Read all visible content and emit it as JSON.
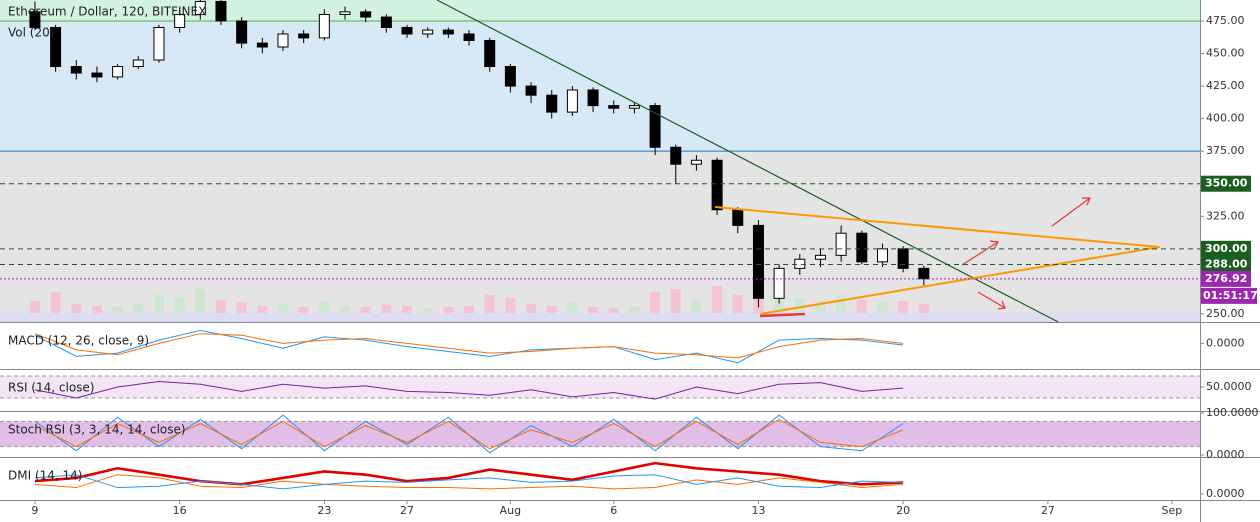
{
  "chart_data": [
    {
      "type": "candlestick",
      "title": "Ethereum / Dollar, 120, BITFINEX",
      "volume_title": "Vol (20)",
      "xlim": [
        -1.69,
        56.36
      ],
      "ylim": [
        243.8,
        491.1
      ],
      "yticks": [
        {
          "value": 250,
          "label": "250.00"
        },
        {
          "value": 275,
          "label": "275.00"
        },
        {
          "value": 300,
          "label": "300.00"
        },
        {
          "value": 325,
          "label": "325.00"
        },
        {
          "value": 350,
          "label": "350.00"
        },
        {
          "value": 375,
          "label": "375.00"
        },
        {
          "value": 400,
          "label": "400.00"
        },
        {
          "value": 425,
          "label": "425.00"
        },
        {
          "value": 450,
          "label": "450.00"
        },
        {
          "value": 475,
          "label": "475.00"
        }
      ],
      "up_color": "#ffffff",
      "down_color": "#000000",
      "x": [
        0,
        1,
        2,
        3,
        4,
        5,
        6,
        7,
        8,
        9,
        10,
        11,
        12,
        13,
        14,
        15,
        16,
        17,
        18,
        19,
        20,
        21,
        22,
        23,
        24,
        25,
        26,
        27,
        28,
        29,
        30,
        31,
        32,
        33,
        34,
        35,
        36,
        37,
        38,
        39,
        40,
        41,
        42,
        43
      ],
      "open": [
        482,
        470,
        440,
        435,
        432,
        440,
        445,
        470,
        480,
        490,
        475,
        458,
        455,
        465,
        462,
        480,
        482,
        478,
        470,
        465,
        468,
        465,
        460,
        440,
        425,
        418,
        405,
        422,
        410,
        408,
        410,
        378,
        365,
        368,
        330,
        318,
        262,
        285,
        292,
        295,
        312,
        290,
        300,
        285
      ],
      "high": [
        490,
        472,
        445,
        440,
        442,
        448,
        472,
        485,
        498,
        492,
        478,
        462,
        468,
        468,
        484,
        486,
        484,
        480,
        472,
        470,
        470,
        468,
        462,
        442,
        428,
        422,
        425,
        424,
        414,
        412,
        412,
        380,
        372,
        370,
        332,
        322,
        288,
        296,
        300,
        318,
        314,
        304,
        302,
        287
      ],
      "low": [
        468,
        436,
        430,
        428,
        430,
        438,
        443,
        466,
        476,
        472,
        454,
        450,
        452,
        458,
        460,
        476,
        474,
        466,
        462,
        462,
        462,
        456,
        436,
        420,
        412,
        400,
        402,
        405,
        404,
        404,
        372,
        350,
        360,
        326,
        312,
        255,
        258,
        280,
        286,
        290,
        288,
        286,
        282,
        272
      ],
      "close": [
        470,
        440,
        435,
        432,
        440,
        445,
        470,
        480,
        490,
        475,
        458,
        455,
        465,
        462,
        480,
        482,
        478,
        470,
        465,
        468,
        465,
        460,
        440,
        425,
        418,
        405,
        422,
        410,
        408,
        410,
        378,
        365,
        368,
        330,
        318,
        262,
        285,
        292,
        295,
        312,
        290,
        300,
        285,
        277
      ],
      "volume": [
        20,
        35,
        15,
        12,
        10,
        14,
        30,
        25,
        40,
        22,
        18,
        12,
        14,
        10,
        20,
        12,
        10,
        14,
        12,
        8,
        10,
        12,
        30,
        25,
        15,
        12,
        18,
        10,
        8,
        10,
        35,
        40,
        20,
        45,
        30,
        70,
        40,
        25,
        20,
        30,
        22,
        18,
        20,
        15
      ],
      "volume_ylim": [
        0,
        100
      ],
      "volume_up_color": "#c8e6c9",
      "volume_down_color": "#f8bbd0",
      "hlines": [
        {
          "value": 475,
          "color": "#4caf50"
        },
        {
          "value": 375,
          "color": "#1976d2"
        }
      ],
      "levels": [
        {
          "value": 350,
          "label": "350.00",
          "color": "#1b5e20",
          "style": "dashed"
        },
        {
          "value": 300,
          "label": "300.00",
          "color": "#1b5e20",
          "style": "dashed"
        },
        {
          "value": 288,
          "label": "288.00",
          "color": "#1b5e20",
          "style": "dashed"
        },
        {
          "value": 276.92,
          "label": "276.92",
          "color": "#9c27b0",
          "style": "dotted"
        }
      ],
      "countdown": "01:51:17",
      "trendlines": [
        {
          "color": "#1b5e20",
          "points": [
            [
              19.45,
              491.1
            ],
            [
              49.5,
              243.8
            ]
          ]
        },
        {
          "color": "#ff9800",
          "points": [
            [
              32.9,
              332.1
            ],
            [
              54.4,
              301.4
            ],
            [
              35.1,
              250
            ]
          ]
        }
      ]
    },
    {
      "type": "line",
      "title": "MACD (12, 26, close, 9)",
      "xlim": [
        -1.69,
        56.36
      ],
      "ylim": [
        -15.8,
        12.6
      ],
      "yticks": [
        {
          "value": 0,
          "label": "0.0000"
        }
      ],
      "x": [
        0,
        2,
        4,
        6,
        8,
        10,
        12,
        14,
        16,
        18,
        20,
        22,
        24,
        26,
        28,
        30,
        32,
        34,
        36,
        38,
        40,
        42
      ],
      "series": [
        {
          "color": "#2196f3",
          "values": [
            5,
            -8,
            -6,
            2,
            8,
            3,
            -3,
            4,
            2,
            -2,
            -5,
            -8,
            -4,
            -3,
            -2,
            -10,
            -6,
            -12,
            2,
            3,
            2,
            -1
          ]
        },
        {
          "color": "#ff6d00",
          "values": [
            6,
            -4,
            -7,
            0,
            6,
            5,
            0,
            2,
            3,
            0,
            -3,
            -6,
            -5,
            -3,
            -2,
            -6,
            -7,
            -9,
            -2,
            2,
            3,
            0
          ]
        }
      ]
    },
    {
      "type": "line",
      "title": "RSI (14, close)",
      "xlim": [
        -1.69,
        56.36
      ],
      "ylim": [
        6.4,
        80.9
      ],
      "yticks": [
        {
          "value": 50,
          "label": "50.0000"
        }
      ],
      "bands": [
        30,
        70
      ],
      "band_color": "#f3e5f5",
      "x": [
        0,
        2,
        4,
        6,
        8,
        10,
        12,
        14,
        16,
        18,
        20,
        22,
        24,
        26,
        28,
        30,
        32,
        34,
        36,
        38,
        40,
        42
      ],
      "series": [
        {
          "color": "#7b1fa2",
          "values": [
            45,
            30,
            50,
            60,
            55,
            42,
            55,
            48,
            52,
            42,
            40,
            35,
            45,
            32,
            40,
            28,
            50,
            38,
            55,
            58,
            42,
            48
          ]
        }
      ]
    },
    {
      "type": "line",
      "title": "Stoch RSI (3, 3, 14, 14, close)",
      "xlim": [
        -1.69,
        56.36
      ],
      "ylim": [
        -4.8,
        102.4
      ],
      "yticks": [
        {
          "value": 0,
          "label": "0.0000"
        },
        {
          "value": 100,
          "label": "100.0000"
        }
      ],
      "bands": [
        20,
        80
      ],
      "band_color": "#e1bee7",
      "x": [
        0,
        2,
        4,
        6,
        8,
        10,
        12,
        14,
        16,
        18,
        20,
        22,
        24,
        26,
        28,
        30,
        32,
        34,
        36,
        38,
        40,
        42
      ],
      "series": [
        {
          "color": "#2196f3",
          "values": [
            80,
            10,
            90,
            20,
            85,
            15,
            95,
            10,
            80,
            25,
            90,
            5,
            70,
            20,
            85,
            10,
            90,
            15,
            95,
            20,
            10,
            75
          ]
        },
        {
          "color": "#ff6d00",
          "values": [
            70,
            20,
            75,
            30,
            75,
            25,
            80,
            20,
            70,
            30,
            80,
            15,
            60,
            30,
            75,
            20,
            80,
            25,
            85,
            30,
            20,
            60
          ]
        }
      ]
    },
    {
      "type": "line",
      "title": "DMI (14, 14)",
      "xlim": [
        -1.69,
        56.36
      ],
      "ylim": [
        -9.4,
        56
      ],
      "yticks": [
        {
          "value": 0,
          "label": "0.0000"
        }
      ],
      "x": [
        0,
        2,
        4,
        6,
        8,
        10,
        12,
        14,
        16,
        18,
        20,
        22,
        24,
        26,
        28,
        30,
        32,
        34,
        36,
        38,
        40,
        42
      ],
      "series": [
        {
          "color": "#e00000",
          "values": [
            20,
            25,
            40,
            30,
            20,
            15,
            25,
            35,
            30,
            20,
            25,
            38,
            30,
            22,
            35,
            48,
            40,
            35,
            30,
            20,
            15,
            18
          ]
        },
        {
          "color": "#ff6d00",
          "values": [
            15,
            10,
            30,
            25,
            12,
            10,
            20,
            15,
            12,
            10,
            10,
            8,
            10,
            12,
            8,
            10,
            22,
            15,
            25,
            18,
            10,
            15
          ]
        },
        {
          "color": "#2196f3",
          "values": [
            25,
            30,
            10,
            12,
            20,
            15,
            8,
            15,
            20,
            18,
            22,
            25,
            18,
            20,
            28,
            30,
            15,
            25,
            12,
            10,
            20,
            18
          ]
        }
      ],
      "xticks": [
        {
          "value": 0,
          "label": "9"
        },
        {
          "value": 7,
          "label": "16"
        },
        {
          "value": 14,
          "label": "23"
        },
        {
          "value": 18,
          "label": "27"
        },
        {
          "value": 23,
          "label": "Aug"
        },
        {
          "value": 28,
          "label": "6"
        },
        {
          "value": 35,
          "label": "13"
        },
        {
          "value": 42,
          "label": "20"
        },
        {
          "value": 49,
          "label": "27"
        },
        {
          "value": 55,
          "label": "Sep"
        }
      ]
    }
  ]
}
